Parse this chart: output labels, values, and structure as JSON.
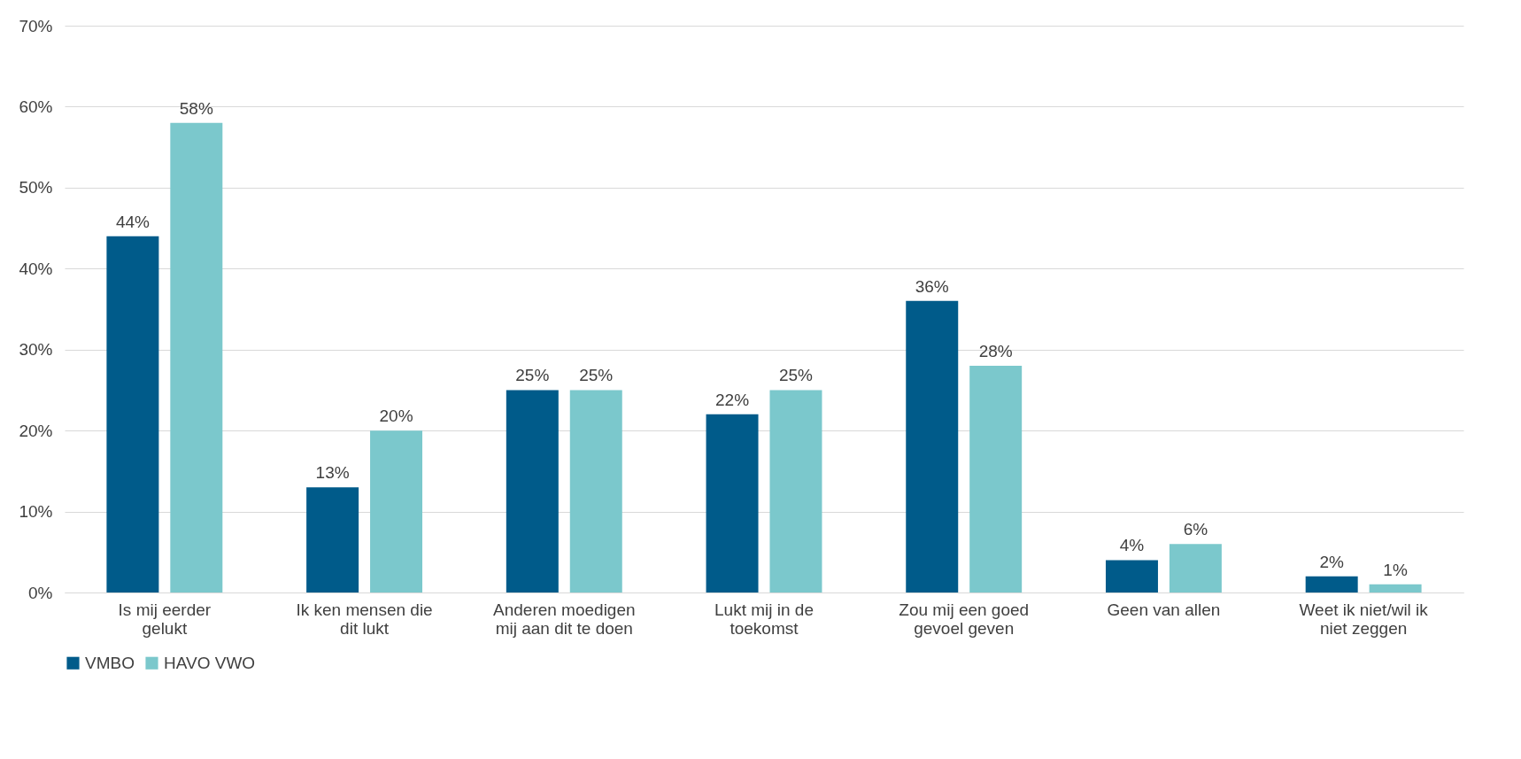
{
  "chart_data": {
    "type": "bar",
    "categories": [
      "Is mij eerder gelukt",
      "Ik ken mensen die dit lukt",
      "Anderen moedigen mij aan dit te doen",
      "Lukt mij in de toekomst",
      "Zou mij een goed gevoel geven",
      "Geen van allen",
      "Weet ik niet/wil ik niet zeggen"
    ],
    "series": [
      {
        "name": "VMBO",
        "color": "#005b8a",
        "values": [
          44,
          13,
          25,
          22,
          36,
          4,
          2
        ],
        "value_labels": [
          "44%",
          "13%",
          "25%",
          "22%",
          "36%",
          "4%",
          "2%"
        ]
      },
      {
        "name": "HAVO VWO",
        "color": "#7bc8cc",
        "values": [
          58,
          20,
          25,
          25,
          28,
          6,
          1
        ],
        "value_labels": [
          "58%",
          "20%",
          "25%",
          "25%",
          "28%",
          "6%",
          "1%"
        ]
      }
    ],
    "ylim": [
      0,
      70
    ],
    "yticks": [
      {
        "value": 0,
        "label": "0%"
      },
      {
        "value": 10,
        "label": "10%"
      },
      {
        "value": 20,
        "label": "20%"
      },
      {
        "value": 30,
        "label": "30%"
      },
      {
        "value": 40,
        "label": "40%"
      },
      {
        "value": 50,
        "label": "50%"
      },
      {
        "value": 60,
        "label": "60%"
      },
      {
        "value": 70,
        "label": "70%"
      }
    ],
    "grid": "y",
    "legend": "bottom"
  }
}
